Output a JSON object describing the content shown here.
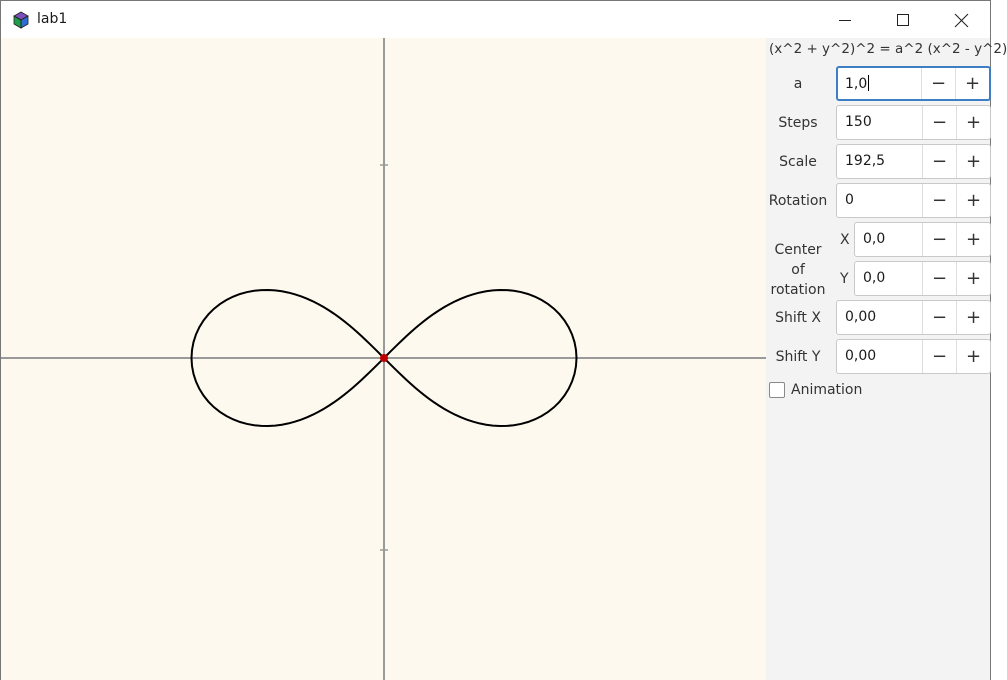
{
  "window": {
    "title": "lab1",
    "controls": [
      "minimize-icon",
      "maximize-icon",
      "close-icon"
    ]
  },
  "panel": {
    "formula": "(x^2 + y^2)^2 = a^2 (x^2 - y^2)",
    "a": {
      "label": "a",
      "value": "1,0"
    },
    "steps": {
      "label": "Steps",
      "value": "150"
    },
    "scale": {
      "label": "Scale",
      "value": "192,5"
    },
    "rotation": {
      "label": "Rotation",
      "value": "0"
    },
    "center": {
      "label": "Center of rotation",
      "x_label": "X",
      "x_value": "0,0",
      "y_label": "Y",
      "y_value": "0,0"
    },
    "shift_x": {
      "label": "Shift X",
      "value": "0,00"
    },
    "shift_y": {
      "label": "Shift Y",
      "value": "0,00"
    },
    "animation": {
      "label": "Animation",
      "checked": false
    },
    "minus_symbol": "−",
    "plus_symbol": "+"
  },
  "plot": {
    "curve": "lemniscate",
    "a": 1.0,
    "steps": 150,
    "scale": 192.5,
    "colors": {
      "background": "#fdf9ee",
      "axes": "#9a9a9a",
      "curve": "#000000",
      "origin": "#c00000"
    }
  }
}
